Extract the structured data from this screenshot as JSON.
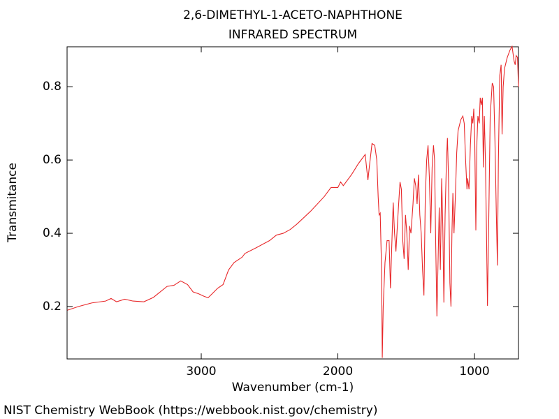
{
  "chart_data": {
    "type": "line",
    "title": "2,6-DIMETHYL-1-ACETO-NAPHTHONE",
    "subtitle": "INFRARED SPECTRUM",
    "xlabel": "Wavenumber (cm-1)",
    "ylabel": "Transmitance",
    "footer": "NIST Chemistry WebBook (https://webbook.nist.gov/chemistry)",
    "color": "#e8282a",
    "xlim": [
      3982,
      678
    ],
    "ylim": [
      0.057,
      0.909
    ],
    "xticks": [
      3000,
      2000,
      1000
    ],
    "yticks": [
      0.2,
      0.4,
      0.6,
      0.8
    ],
    "x": [
      3980,
      3900,
      3800,
      3700,
      3660,
      3620,
      3560,
      3500,
      3420,
      3350,
      3300,
      3250,
      3200,
      3150,
      3100,
      3060,
      3020,
      2980,
      2950,
      2920,
      2880,
      2840,
      2800,
      2760,
      2700,
      2680,
      2600,
      2500,
      2450,
      2400,
      2350,
      2300,
      2200,
      2100,
      2050,
      2000,
      1980,
      1960,
      1900,
      1850,
      1820,
      1800,
      1790,
      1780,
      1770,
      1750,
      1730,
      1715,
      1705,
      1698,
      1690,
      1680,
      1675,
      1668,
      1655,
      1640,
      1625,
      1615,
      1605,
      1595,
      1585,
      1575,
      1560,
      1545,
      1535,
      1525,
      1515,
      1505,
      1495,
      1485,
      1475,
      1465,
      1450,
      1440,
      1430,
      1420,
      1410,
      1400,
      1390,
      1380,
      1370,
      1360,
      1350,
      1340,
      1330,
      1320,
      1310,
      1300,
      1292,
      1285,
      1275,
      1265,
      1258,
      1250,
      1240,
      1232,
      1224,
      1215,
      1205,
      1198,
      1190,
      1180,
      1172,
      1165,
      1158,
      1150,
      1140,
      1130,
      1120,
      1100,
      1085,
      1075,
      1065,
      1055,
      1050,
      1040,
      1030,
      1020,
      1012,
      1005,
      998,
      990,
      982,
      975,
      965,
      958,
      950,
      942,
      935,
      928,
      920,
      912,
      905,
      895,
      885,
      870,
      860,
      850,
      840,
      832,
      825,
      815,
      805,
      798,
      790,
      780,
      760,
      740,
      725,
      710,
      702,
      695,
      685,
      678
    ],
    "values": [
      0.19,
      0.2,
      0.21,
      0.215,
      0.222,
      0.213,
      0.22,
      0.215,
      0.213,
      0.225,
      0.24,
      0.255,
      0.258,
      0.27,
      0.26,
      0.24,
      0.235,
      0.228,
      0.224,
      0.235,
      0.25,
      0.26,
      0.3,
      0.32,
      0.335,
      0.345,
      0.36,
      0.38,
      0.395,
      0.4,
      0.41,
      0.425,
      0.46,
      0.5,
      0.525,
      0.525,
      0.54,
      0.53,
      0.56,
      0.59,
      0.605,
      0.615,
      0.58,
      0.545,
      0.58,
      0.645,
      0.64,
      0.6,
      0.5,
      0.45,
      0.455,
      0.3,
      0.06,
      0.2,
      0.32,
      0.38,
      0.38,
      0.25,
      0.37,
      0.484,
      0.4,
      0.35,
      0.45,
      0.54,
      0.52,
      0.38,
      0.33,
      0.45,
      0.4,
      0.3,
      0.42,
      0.4,
      0.48,
      0.55,
      0.53,
      0.48,
      0.56,
      0.45,
      0.4,
      0.3,
      0.23,
      0.5,
      0.6,
      0.64,
      0.55,
      0.4,
      0.58,
      0.64,
      0.6,
      0.4,
      0.173,
      0.35,
      0.47,
      0.3,
      0.55,
      0.42,
      0.211,
      0.45,
      0.6,
      0.66,
      0.55,
      0.265,
      0.2,
      0.4,
      0.51,
      0.4,
      0.5,
      0.62,
      0.68,
      0.71,
      0.72,
      0.7,
      0.6,
      0.52,
      0.55,
      0.52,
      0.64,
      0.72,
      0.7,
      0.74,
      0.65,
      0.408,
      0.65,
      0.72,
      0.7,
      0.77,
      0.75,
      0.77,
      0.58,
      0.72,
      0.6,
      0.4,
      0.202,
      0.45,
      0.72,
      0.81,
      0.8,
      0.65,
      0.45,
      0.312,
      0.6,
      0.83,
      0.86,
      0.67,
      0.8,
      0.85,
      0.88,
      0.9,
      0.91,
      0.87,
      0.86,
      0.885,
      0.88,
      0.8
    ]
  }
}
